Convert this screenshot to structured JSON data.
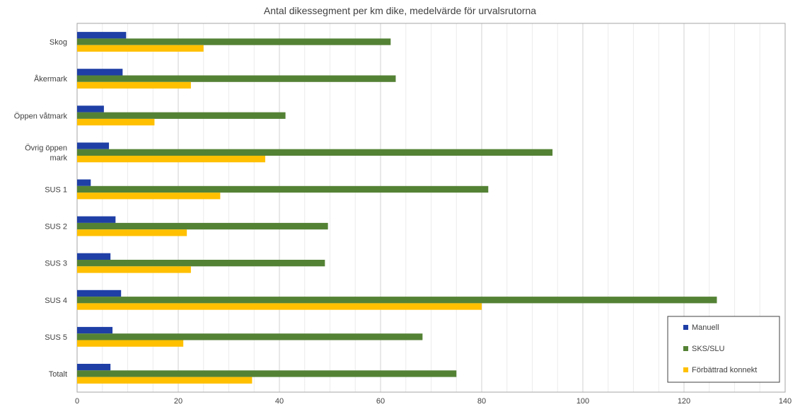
{
  "chart_data": {
    "type": "bar",
    "orientation": "horizontal",
    "title": "Antal dikessegment per km dike, medelvärde för urvalsrutorna",
    "xlabel": "",
    "ylabel": "",
    "xlim": [
      0,
      140
    ],
    "x_ticks": [
      0,
      20,
      40,
      60,
      80,
      100,
      120,
      140
    ],
    "grid": true,
    "legend_position": "bottom-right",
    "categories": [
      [
        "Skog"
      ],
      [
        "Åkermark"
      ],
      [
        "Öppen våtmark"
      ],
      [
        "Övrig öppen",
        "mark"
      ],
      [
        "SUS 1"
      ],
      [
        "SUS 2"
      ],
      [
        "SUS 3"
      ],
      [
        "SUS 4"
      ],
      [
        "SUS 5"
      ],
      [
        "Totalt"
      ]
    ],
    "series": [
      {
        "name": "Manuell",
        "color": "#1f3fa6",
        "values": [
          9.7,
          9.0,
          5.3,
          6.3,
          2.7,
          7.6,
          6.6,
          8.7,
          7.0,
          6.6
        ]
      },
      {
        "name": "SKS/SLU",
        "color": "#548235",
        "values": [
          62.0,
          63.0,
          41.2,
          94.0,
          81.3,
          49.6,
          49.0,
          126.5,
          68.3,
          75.0
        ]
      },
      {
        "name": "Förbättrad konnekt",
        "color": "#ffc000",
        "values": [
          25.0,
          22.5,
          15.3,
          37.2,
          28.3,
          21.7,
          22.5,
          80.0,
          21.0,
          34.6
        ]
      }
    ]
  }
}
